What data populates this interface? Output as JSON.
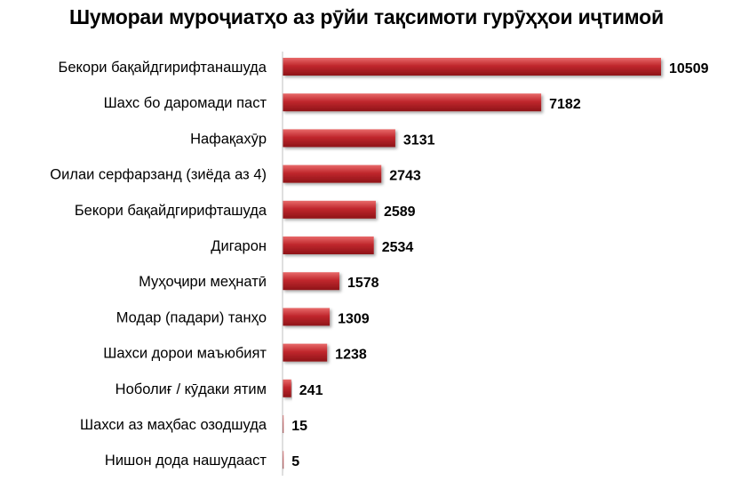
{
  "chart_data": {
    "type": "bar",
    "orientation": "horizontal",
    "title": "Шумораи муроҷиатҳо аз рӯйи тақсимоти гурӯҳҳои иҷтимоӣ",
    "xlabel": "",
    "ylabel": "",
    "categories": [
      "Бекори бақайдгирифтанашуда",
      "Шахс бо даромади паст",
      "Нафақахӯр",
      "Оилаи серфарзанд (зиёда аз 4)",
      "Бекори бақайдгирифташуда",
      "Дигарон",
      "Муҳоҷири меҳнатӣ",
      "Модар (падари) танҳо",
      "Шахси дорои маъюбият",
      "Ноболиғ / кӯдаки ятим",
      "Шахси аз маҳбас озодшуда",
      "Нишон дода нашудааст"
    ],
    "values": [
      10509,
      7182,
      3131,
      2743,
      2589,
      2534,
      1578,
      1309,
      1238,
      241,
      15,
      5
    ],
    "data_labels": [
      "10509",
      "7182",
      "3131",
      "2743",
      "2589",
      "2534",
      "1578",
      "1309",
      "1238",
      "241",
      "15",
      "5"
    ],
    "xlim": [
      0,
      10509
    ],
    "grid": false,
    "legend": "none",
    "colors": {
      "bar_top": "#e86a6a",
      "bar_mid": "#c0272d",
      "bar_bottom": "#8e1418",
      "axis": "#bfbfbf"
    }
  }
}
